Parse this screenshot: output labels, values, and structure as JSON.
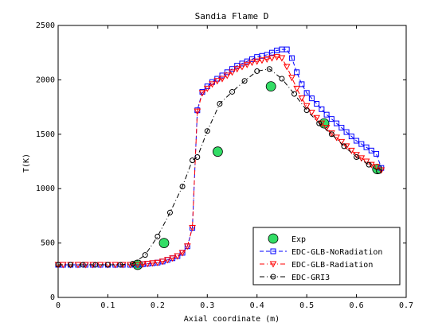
{
  "chart_data": {
    "type": "line",
    "title": "Sandia Flame D",
    "xlabel": "Axial coordinate (m)",
    "ylabel": "T(K)",
    "xlim": [
      0,
      0.7
    ],
    "ylim": [
      0,
      2500
    ],
    "xticks": [
      0,
      0.1,
      0.2,
      0.3,
      0.4,
      0.5,
      0.6,
      0.7
    ],
    "xtick_labels": [
      "0",
      "0.1",
      "0.2",
      "0.3",
      "0.4",
      "0.5",
      "0.6",
      "0.7"
    ],
    "yticks": [
      0,
      500,
      1000,
      1500,
      2000,
      2500
    ],
    "ytick_labels": [
      "0",
      "500",
      "1000",
      "1500",
      "2000",
      "2500"
    ],
    "grid": false,
    "legend_position": "bottom-right",
    "series": [
      {
        "name": "Exp",
        "color": "#33dd66",
        "marker": "circle-filled",
        "line": "none",
        "x": [
          0.16,
          0.213,
          0.321,
          0.428,
          0.535,
          0.642
        ],
        "y": [
          300,
          500,
          1340,
          1940,
          1600,
          1180
        ]
      },
      {
        "name": "EDC-GLB-NoRadiation",
        "color": "#0000ff",
        "marker": "square",
        "line": "dash",
        "x": [
          0,
          0.01,
          0.025,
          0.04,
          0.055,
          0.07,
          0.085,
          0.1,
          0.115,
          0.13,
          0.145,
          0.16,
          0.17,
          0.18,
          0.19,
          0.2,
          0.21,
          0.22,
          0.23,
          0.24,
          0.25,
          0.26,
          0.27,
          0.28,
          0.29,
          0.3,
          0.31,
          0.32,
          0.33,
          0.34,
          0.35,
          0.36,
          0.37,
          0.38,
          0.39,
          0.4,
          0.41,
          0.42,
          0.43,
          0.44,
          0.45,
          0.46,
          0.47,
          0.48,
          0.49,
          0.5,
          0.51,
          0.52,
          0.53,
          0.54,
          0.55,
          0.56,
          0.57,
          0.58,
          0.59,
          0.6,
          0.61,
          0.62,
          0.63,
          0.64,
          0.65
        ],
        "y": [
          300,
          300,
          300,
          300,
          300,
          300,
          300,
          300,
          300,
          300,
          300,
          300,
          305,
          310,
          315,
          320,
          330,
          345,
          360,
          380,
          410,
          470,
          640,
          1720,
          1890,
          1940,
          1980,
          2010,
          2040,
          2070,
          2100,
          2130,
          2150,
          2170,
          2190,
          2210,
          2220,
          2230,
          2250,
          2270,
          2280,
          2280,
          2200,
          2070,
          1960,
          1880,
          1830,
          1780,
          1730,
          1680,
          1640,
          1600,
          1560,
          1520,
          1480,
          1440,
          1410,
          1380,
          1350,
          1320,
          1190
        ]
      },
      {
        "name": "EDC-GLB-Radiation",
        "color": "#ff0000",
        "marker": "triangle-down",
        "line": "dashdot",
        "x": [
          0,
          0.01,
          0.025,
          0.04,
          0.055,
          0.07,
          0.085,
          0.1,
          0.115,
          0.13,
          0.145,
          0.16,
          0.17,
          0.18,
          0.19,
          0.2,
          0.21,
          0.22,
          0.23,
          0.24,
          0.25,
          0.26,
          0.27,
          0.28,
          0.29,
          0.3,
          0.31,
          0.32,
          0.33,
          0.34,
          0.35,
          0.36,
          0.37,
          0.38,
          0.39,
          0.4,
          0.41,
          0.42,
          0.43,
          0.44,
          0.45,
          0.46,
          0.47,
          0.48,
          0.49,
          0.5,
          0.51,
          0.52,
          0.53,
          0.54,
          0.55,
          0.56,
          0.57,
          0.58,
          0.59,
          0.6,
          0.61,
          0.62,
          0.63,
          0.64,
          0.65
        ],
        "y": [
          300,
          300,
          300,
          300,
          300,
          300,
          300,
          300,
          300,
          300,
          300,
          300,
          305,
          310,
          315,
          320,
          330,
          345,
          360,
          380,
          410,
          470,
          640,
          1710,
          1880,
          1920,
          1960,
          1990,
          2010,
          2040,
          2070,
          2100,
          2120,
          2140,
          2160,
          2170,
          2180,
          2190,
          2200,
          2210,
          2200,
          2120,
          2020,
          1920,
          1830,
          1760,
          1700,
          1650,
          1600,
          1560,
          1510,
          1470,
          1430,
          1390,
          1350,
          1310,
          1280,
          1250,
          1220,
          1200,
          1170
        ]
      },
      {
        "name": "EDC-GRI3",
        "color": "#000000",
        "marker": "circle-open",
        "line": "dashdot",
        "x": [
          0,
          0.025,
          0.05,
          0.075,
          0.1,
          0.125,
          0.15,
          0.175,
          0.2,
          0.225,
          0.25,
          0.27,
          0.28,
          0.3,
          0.325,
          0.35,
          0.375,
          0.4,
          0.425,
          0.45,
          0.475,
          0.5,
          0.525,
          0.55,
          0.575,
          0.6,
          0.625,
          0.645
        ],
        "y": [
          300,
          300,
          300,
          300,
          300,
          300,
          310,
          390,
          560,
          780,
          1020,
          1260,
          1290,
          1530,
          1780,
          1890,
          1990,
          2080,
          2100,
          2010,
          1870,
          1720,
          1600,
          1500,
          1390,
          1290,
          1220,
          1160
        ]
      }
    ]
  }
}
